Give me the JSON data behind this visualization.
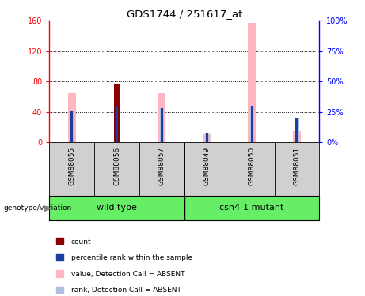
{
  "title": "GDS1744 / 251617_at",
  "samples": [
    "GSM88055",
    "GSM88056",
    "GSM88057",
    "GSM88049",
    "GSM88050",
    "GSM88051"
  ],
  "pink_values": [
    65,
    0,
    65,
    10,
    157,
    15
  ],
  "blue_rank_values": [
    26,
    30,
    28,
    8,
    30,
    20
  ],
  "red_count_values": [
    0,
    76,
    0,
    0,
    0,
    0
  ],
  "ylim_left": [
    0,
    160
  ],
  "ylim_right": [
    0,
    100
  ],
  "yticks_left": [
    0,
    40,
    80,
    120,
    160
  ],
  "yticks_right": [
    0,
    25,
    50,
    75,
    100
  ],
  "ytick_labels_left": [
    "0",
    "40",
    "80",
    "120",
    "160"
  ],
  "ytick_labels_right": [
    "0%",
    "25%",
    "50%",
    "75%",
    "100%"
  ],
  "color_red": "#8B0000",
  "color_blue": "#1a3fa0",
  "color_pink": "#FFB6C1",
  "color_light_blue": "#b0bedd",
  "color_bg_label": "#d0d0d0",
  "color_group_green": "#66ee66",
  "genotype_label": "genotype/variation",
  "legend_items": [
    {
      "color": "#8B0000",
      "label": "count"
    },
    {
      "color": "#1a3fa0",
      "label": "percentile rank within the sample"
    },
    {
      "color": "#FFB6C1",
      "label": "value, Detection Call = ABSENT"
    },
    {
      "color": "#b0bedd",
      "label": "rank, Detection Call = ABSENT"
    }
  ]
}
